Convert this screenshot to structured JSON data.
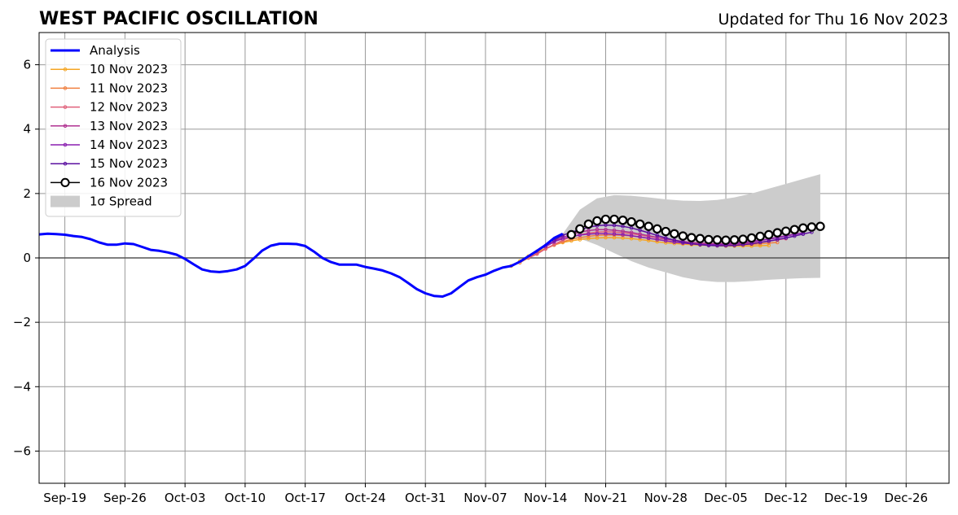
{
  "header": {
    "title": "WEST PACIFIC OSCILLATION",
    "updated": "Updated for Thu 16 Nov 2023"
  },
  "chart_data": {
    "type": "line",
    "title": "WEST PACIFIC OSCILLATION",
    "subtitle": "Updated for Thu 16 Nov 2023",
    "xlabel": "",
    "ylabel": "",
    "xlim": [
      "2023-09-16",
      "2023-12-31"
    ],
    "ylim": [
      -7,
      7
    ],
    "grid": true,
    "legend_position": "top-left",
    "x_ticks": [
      "Sep-19",
      "Sep-26",
      "Oct-03",
      "Oct-10",
      "Oct-17",
      "Oct-24",
      "Oct-31",
      "Nov-07",
      "Nov-14",
      "Nov-21",
      "Nov-28",
      "Dec-05",
      "Dec-12",
      "Dec-19",
      "Dec-26"
    ],
    "y_ticks": [
      -6,
      -4,
      -2,
      0,
      2,
      4,
      6
    ],
    "y_tick_labels": [
      "−6",
      "−4",
      "−2",
      "0",
      "2",
      "4",
      "6"
    ],
    "spread": {
      "name": "1σ Spread",
      "color": "#cccccc",
      "x": [
        "2023-11-16",
        "2023-11-18",
        "2023-11-20",
        "2023-11-22",
        "2023-11-24",
        "2023-11-26",
        "2023-11-28",
        "2023-11-30",
        "2023-12-02",
        "2023-12-04",
        "2023-12-06",
        "2023-12-08",
        "2023-12-10",
        "2023-12-12",
        "2023-12-14",
        "2023-12-16"
      ],
      "upper": [
        0.75,
        1.5,
        1.85,
        1.95,
        1.93,
        1.88,
        1.82,
        1.78,
        1.77,
        1.8,
        1.88,
        2.0,
        2.15,
        2.3,
        2.45,
        2.6
      ],
      "lower": [
        0.75,
        0.6,
        0.4,
        0.15,
        -0.1,
        -0.3,
        -0.45,
        -0.6,
        -0.7,
        -0.75,
        -0.75,
        -0.72,
        -0.68,
        -0.65,
        -0.63,
        -0.62
      ]
    },
    "series": [
      {
        "name": "Analysis",
        "color": "#0000ff",
        "style": "line",
        "x": [
          "2023-09-16",
          "2023-09-17",
          "2023-09-18",
          "2023-09-19",
          "2023-09-20",
          "2023-09-21",
          "2023-09-22",
          "2023-09-23",
          "2023-09-24",
          "2023-09-25",
          "2023-09-26",
          "2023-09-27",
          "2023-09-28",
          "2023-09-29",
          "2023-09-30",
          "2023-10-01",
          "2023-10-02",
          "2023-10-03",
          "2023-10-04",
          "2023-10-05",
          "2023-10-06",
          "2023-10-07",
          "2023-10-08",
          "2023-10-09",
          "2023-10-10",
          "2023-10-11",
          "2023-10-12",
          "2023-10-13",
          "2023-10-14",
          "2023-10-15",
          "2023-10-16",
          "2023-10-17",
          "2023-10-18",
          "2023-10-19",
          "2023-10-20",
          "2023-10-21",
          "2023-10-22",
          "2023-10-23",
          "2023-10-24",
          "2023-10-25",
          "2023-10-26",
          "2023-10-27",
          "2023-10-28",
          "2023-10-29",
          "2023-10-30",
          "2023-10-31",
          "2023-11-01",
          "2023-11-02",
          "2023-11-03",
          "2023-11-04",
          "2023-11-05",
          "2023-11-06",
          "2023-11-07",
          "2023-11-08",
          "2023-11-09",
          "2023-11-10",
          "2023-11-11",
          "2023-11-12",
          "2023-11-13",
          "2023-11-14",
          "2023-11-15",
          "2023-11-16"
        ],
        "y": [
          0.73,
          0.75,
          0.74,
          0.72,
          0.68,
          0.65,
          0.58,
          0.48,
          0.41,
          0.41,
          0.45,
          0.43,
          0.34,
          0.25,
          0.22,
          0.17,
          0.1,
          -0.03,
          -0.2,
          -0.36,
          -0.42,
          -0.44,
          -0.41,
          -0.36,
          -0.25,
          -0.02,
          0.23,
          0.38,
          0.44,
          0.44,
          0.43,
          0.37,
          0.2,
          0.0,
          -0.13,
          -0.21,
          -0.21,
          -0.21,
          -0.28,
          -0.33,
          -0.39,
          -0.48,
          -0.6,
          -0.78,
          -0.97,
          -1.1,
          -1.18,
          -1.2,
          -1.1,
          -0.9,
          -0.7,
          -0.6,
          -0.52,
          -0.4,
          -0.3,
          -0.25,
          -0.12,
          0.05,
          0.22,
          0.4,
          0.62,
          0.75
        ]
      },
      {
        "name": "10 Nov 2023",
        "color": "#f5a623",
        "style": "dots",
        "x": [
          "2023-11-10",
          "2023-11-11",
          "2023-11-12",
          "2023-11-13",
          "2023-11-14",
          "2023-11-15",
          "2023-11-16",
          "2023-11-17",
          "2023-11-18",
          "2023-11-19",
          "2023-11-20",
          "2023-11-21",
          "2023-11-22",
          "2023-11-23",
          "2023-11-24",
          "2023-11-25",
          "2023-11-26",
          "2023-11-27",
          "2023-11-28",
          "2023-11-29",
          "2023-11-30",
          "2023-12-01",
          "2023-12-02",
          "2023-12-03",
          "2023-12-04",
          "2023-12-05",
          "2023-12-06",
          "2023-12-07",
          "2023-12-08",
          "2023-12-09",
          "2023-12-10"
        ],
        "y": [
          -0.25,
          -0.1,
          0.05,
          0.18,
          0.3,
          0.4,
          0.48,
          0.53,
          0.57,
          0.6,
          0.62,
          0.63,
          0.63,
          0.62,
          0.6,
          0.57,
          0.54,
          0.5,
          0.47,
          0.45,
          0.43,
          0.41,
          0.4,
          0.39,
          0.38,
          0.37,
          0.37,
          0.37,
          0.37,
          0.38,
          0.39
        ]
      },
      {
        "name": "11 Nov 2023",
        "color": "#f08040",
        "style": "dots",
        "x": [
          "2023-11-11",
          "2023-11-12",
          "2023-11-13",
          "2023-11-14",
          "2023-11-15",
          "2023-11-16",
          "2023-11-17",
          "2023-11-18",
          "2023-11-19",
          "2023-11-20",
          "2023-11-21",
          "2023-11-22",
          "2023-11-23",
          "2023-11-24",
          "2023-11-25",
          "2023-11-26",
          "2023-11-27",
          "2023-11-28",
          "2023-11-29",
          "2023-11-30",
          "2023-12-01",
          "2023-12-02",
          "2023-12-03",
          "2023-12-04",
          "2023-12-05",
          "2023-12-06",
          "2023-12-07",
          "2023-12-08",
          "2023-12-09",
          "2023-12-10",
          "2023-12-11"
        ],
        "y": [
          -0.15,
          0.0,
          0.15,
          0.28,
          0.4,
          0.5,
          0.58,
          0.63,
          0.67,
          0.7,
          0.71,
          0.71,
          0.7,
          0.68,
          0.65,
          0.61,
          0.57,
          0.53,
          0.49,
          0.46,
          0.44,
          0.42,
          0.41,
          0.4,
          0.4,
          0.4,
          0.41,
          0.42,
          0.44,
          0.46,
          0.48
        ]
      },
      {
        "name": "12 Nov 2023",
        "color": "#e0607a",
        "style": "dots",
        "x": [
          "2023-11-12",
          "2023-11-13",
          "2023-11-14",
          "2023-11-15",
          "2023-11-16",
          "2023-11-17",
          "2023-11-18",
          "2023-11-19",
          "2023-11-20",
          "2023-11-21",
          "2023-11-22",
          "2023-11-23",
          "2023-11-24",
          "2023-11-25",
          "2023-11-26",
          "2023-11-27",
          "2023-11-28",
          "2023-11-29",
          "2023-11-30",
          "2023-12-01",
          "2023-12-02",
          "2023-12-03",
          "2023-12-04",
          "2023-12-05",
          "2023-12-06",
          "2023-12-07",
          "2023-12-08",
          "2023-12-09",
          "2023-12-10",
          "2023-12-11",
          "2023-12-12"
        ],
        "y": [
          0.0,
          0.12,
          0.28,
          0.42,
          0.55,
          0.65,
          0.72,
          0.77,
          0.8,
          0.81,
          0.8,
          0.78,
          0.75,
          0.71,
          0.67,
          0.63,
          0.58,
          0.54,
          0.5,
          0.47,
          0.45,
          0.43,
          0.42,
          0.42,
          0.43,
          0.44,
          0.46,
          0.49,
          0.52,
          0.56,
          0.6
        ]
      },
      {
        "name": "13 Nov 2023",
        "color": "#b03090",
        "style": "dots",
        "x": [
          "2023-11-13",
          "2023-11-14",
          "2023-11-15",
          "2023-11-16",
          "2023-11-17",
          "2023-11-18",
          "2023-11-19",
          "2023-11-20",
          "2023-11-21",
          "2023-11-22",
          "2023-11-23",
          "2023-11-24",
          "2023-11-25",
          "2023-11-26",
          "2023-11-27",
          "2023-11-28",
          "2023-11-29",
          "2023-11-30",
          "2023-12-01",
          "2023-12-02",
          "2023-12-03",
          "2023-12-04",
          "2023-12-05",
          "2023-12-06",
          "2023-12-07",
          "2023-12-08",
          "2023-12-09",
          "2023-12-10",
          "2023-12-11",
          "2023-12-12",
          "2023-12-13"
        ],
        "y": [
          0.2,
          0.38,
          0.52,
          0.64,
          0.73,
          0.8,
          0.85,
          0.88,
          0.88,
          0.86,
          0.83,
          0.79,
          0.74,
          0.69,
          0.64,
          0.59,
          0.55,
          0.51,
          0.48,
          0.46,
          0.45,
          0.44,
          0.45,
          0.46,
          0.48,
          0.51,
          0.55,
          0.59,
          0.64,
          0.69,
          0.74
        ]
      },
      {
        "name": "14 Nov 2023",
        "color": "#8a1fb0",
        "style": "dots",
        "x": [
          "2023-11-14",
          "2023-11-15",
          "2023-11-16",
          "2023-11-17",
          "2023-11-18",
          "2023-11-19",
          "2023-11-20",
          "2023-11-21",
          "2023-11-22",
          "2023-11-23",
          "2023-11-24",
          "2023-11-25",
          "2023-11-26",
          "2023-11-27",
          "2023-11-28",
          "2023-11-29",
          "2023-11-30",
          "2023-12-01",
          "2023-12-02",
          "2023-12-03",
          "2023-12-04",
          "2023-12-05",
          "2023-12-06",
          "2023-12-07",
          "2023-12-08",
          "2023-12-09",
          "2023-12-10",
          "2023-12-11",
          "2023-12-12",
          "2023-12-13",
          "2023-12-14"
        ],
        "y": [
          0.35,
          0.5,
          0.6,
          0.67,
          0.71,
          0.74,
          0.75,
          0.75,
          0.74,
          0.72,
          0.69,
          0.65,
          0.61,
          0.57,
          0.53,
          0.49,
          0.46,
          0.44,
          0.42,
          0.41,
          0.41,
          0.42,
          0.44,
          0.47,
          0.5,
          0.54,
          0.58,
          0.63,
          0.68,
          0.73,
          0.78
        ]
      },
      {
        "name": "15 Nov 2023",
        "color": "#5b0fa0",
        "style": "dots",
        "x": [
          "2023-11-15",
          "2023-11-16",
          "2023-11-17",
          "2023-11-18",
          "2023-11-19",
          "2023-11-20",
          "2023-11-21",
          "2023-11-22",
          "2023-11-23",
          "2023-11-24",
          "2023-11-25",
          "2023-11-26",
          "2023-11-27",
          "2023-11-28",
          "2023-11-29",
          "2023-11-30",
          "2023-12-01",
          "2023-12-02",
          "2023-12-03",
          "2023-12-04",
          "2023-12-05",
          "2023-12-06",
          "2023-12-07",
          "2023-12-08",
          "2023-12-09",
          "2023-12-10",
          "2023-12-11",
          "2023-12-12",
          "2023-12-13",
          "2023-12-14",
          "2023-12-15"
        ],
        "y": [
          0.55,
          0.7,
          0.8,
          0.88,
          0.95,
          1.0,
          1.02,
          1.01,
          0.98,
          0.93,
          0.86,
          0.78,
          0.7,
          0.62,
          0.55,
          0.49,
          0.44,
          0.41,
          0.39,
          0.38,
          0.38,
          0.39,
          0.41,
          0.44,
          0.48,
          0.52,
          0.57,
          0.62,
          0.68,
          0.74,
          0.8
        ]
      },
      {
        "name": "16 Nov 2023",
        "color": "#000000",
        "style": "markers",
        "x": [
          "2023-11-17",
          "2023-11-18",
          "2023-11-19",
          "2023-11-20",
          "2023-11-21",
          "2023-11-22",
          "2023-11-23",
          "2023-11-24",
          "2023-11-25",
          "2023-11-26",
          "2023-11-27",
          "2023-11-28",
          "2023-11-29",
          "2023-11-30",
          "2023-12-01",
          "2023-12-02",
          "2023-12-03",
          "2023-12-04",
          "2023-12-05",
          "2023-12-06",
          "2023-12-07",
          "2023-12-08",
          "2023-12-09",
          "2023-12-10",
          "2023-12-11",
          "2023-12-12",
          "2023-12-13",
          "2023-12-14",
          "2023-12-15",
          "2023-12-16"
        ],
        "y": [
          0.72,
          0.9,
          1.05,
          1.15,
          1.2,
          1.2,
          1.17,
          1.12,
          1.05,
          0.98,
          0.9,
          0.82,
          0.75,
          0.68,
          0.63,
          0.6,
          0.57,
          0.56,
          0.55,
          0.56,
          0.58,
          0.62,
          0.67,
          0.72,
          0.78,
          0.83,
          0.88,
          0.93,
          0.96,
          0.98
        ]
      }
    ]
  }
}
